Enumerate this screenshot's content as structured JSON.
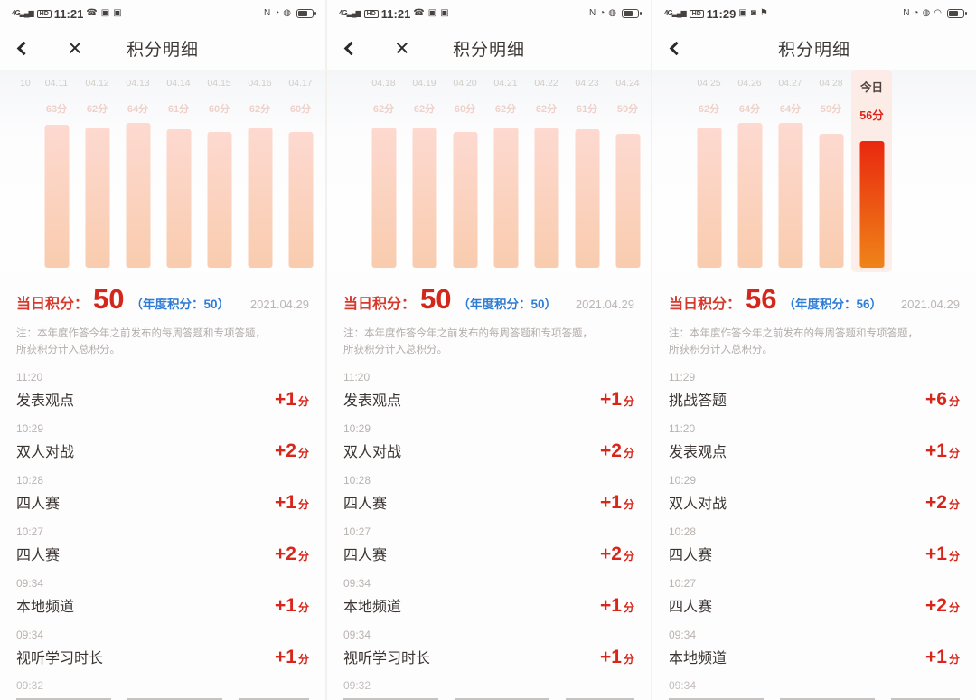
{
  "labels": {
    "points_unit": "分"
  },
  "colors": {
    "accent_red": "#d6281f",
    "annual_blue": "#2e7cd5",
    "bar_top": "#fdd9d0",
    "bar_bottom": "#f9ccae",
    "today_bar_top": "#e9280f",
    "today_bar_bottom": "#ef8418"
  },
  "chart_data": [
    {
      "type": "bar",
      "title": "积分明细 04.11-04.17",
      "categories": [
        "04.11",
        "04.12",
        "04.13",
        "04.14",
        "04.15",
        "04.16",
        "04.17"
      ],
      "values": [
        63,
        62,
        64,
        61,
        60,
        62,
        60
      ],
      "ylabel": "分"
    },
    {
      "type": "bar",
      "title": "积分明细 04.18-04.24",
      "categories": [
        "04.18",
        "04.19",
        "04.20",
        "04.21",
        "04.22",
        "04.23",
        "04.24"
      ],
      "values": [
        62,
        62,
        60,
        62,
        62,
        61,
        59
      ],
      "ylabel": "分"
    },
    {
      "type": "bar",
      "title": "积分明细 04.25-今日",
      "categories": [
        "04.25",
        "04.26",
        "04.27",
        "04.28",
        "今日"
      ],
      "values": [
        62,
        64,
        64,
        59,
        56
      ],
      "ylabel": "分"
    }
  ],
  "panels": [
    {
      "status_bar": {
        "time": "11:21",
        "icons_before_time": [
          {
            "name": "signal-4g-icon",
            "glyph": "4G▂▄▆"
          },
          {
            "name": "hd-icon",
            "glyph": "HD"
          }
        ],
        "icons_after_time": [
          {
            "name": "phone-icon",
            "glyph": "☎"
          },
          {
            "name": "app-badge-icon",
            "glyph": "▣"
          },
          {
            "name": "app-badge-icon",
            "glyph": "▣"
          }
        ],
        "right_icons": [
          {
            "name": "nfc-icon",
            "glyph": "N"
          },
          {
            "name": "alarm-icon",
            "glyph": "◔"
          },
          {
            "name": "data-saver-icon",
            "glyph": "◍"
          },
          {
            "name": "battery-icon",
            "glyph": ""
          }
        ]
      },
      "nav": {
        "title": "积分明细",
        "show_close": true,
        "close_glyph": "×"
      },
      "chart": {
        "partial_left_label": "10",
        "bars": [
          {
            "date": "04.11",
            "value_label": "63分",
            "value": 63
          },
          {
            "date": "04.12",
            "value_label": "62分",
            "value": 62
          },
          {
            "date": "04.13",
            "value_label": "64分",
            "value": 64
          },
          {
            "date": "04.14",
            "value_label": "61分",
            "value": 61
          },
          {
            "date": "04.15",
            "value_label": "60分",
            "value": 60
          },
          {
            "date": "04.16",
            "value_label": "62分",
            "value": 62
          },
          {
            "date": "04.17",
            "value_label": "60分",
            "value": 60
          }
        ]
      },
      "summary": {
        "label": "当日积分：",
        "value": "50",
        "annual": "（年度积分：50）",
        "date": "2021.04.29"
      },
      "note_line1": "注：本年度作答今年之前发布的每周答题和专项答题，",
      "note_line2": "所获积分计入总积分。",
      "entries": [
        {
          "time": "11:20",
          "name": "发表观点",
          "points": "+1"
        },
        {
          "time": "10:29",
          "name": "双人对战",
          "points": "+2"
        },
        {
          "time": "10:28",
          "name": "四人赛",
          "points": "+1"
        },
        {
          "time": "10:27",
          "name": "四人赛",
          "points": "+2"
        },
        {
          "time": "09:34",
          "name": "本地频道",
          "points": "+1"
        },
        {
          "time": "09:34",
          "name": "视听学习时长",
          "points": "+1"
        }
      ],
      "tail_time": "09:32"
    },
    {
      "status_bar": {
        "time": "11:21",
        "icons_before_time": [
          {
            "name": "signal-4g-icon",
            "glyph": "4G▂▄▆"
          },
          {
            "name": "hd-icon",
            "glyph": "HD"
          }
        ],
        "icons_after_time": [
          {
            "name": "phone-icon",
            "glyph": "☎"
          },
          {
            "name": "app-badge-icon",
            "glyph": "▣"
          },
          {
            "name": "app-badge-icon",
            "glyph": "▣"
          }
        ],
        "right_icons": [
          {
            "name": "nfc-icon",
            "glyph": "N"
          },
          {
            "name": "alarm-icon",
            "glyph": "◔"
          },
          {
            "name": "data-saver-icon",
            "glyph": "◍"
          },
          {
            "name": "battery-icon",
            "glyph": ""
          }
        ]
      },
      "nav": {
        "title": "积分明细",
        "show_close": true,
        "close_glyph": "×"
      },
      "chart": {
        "partial_left_label": "",
        "bars": [
          {
            "date": "04.18",
            "value_label": "62分",
            "value": 62
          },
          {
            "date": "04.19",
            "value_label": "62分",
            "value": 62
          },
          {
            "date": "04.20",
            "value_label": "60分",
            "value": 60
          },
          {
            "date": "04.21",
            "value_label": "62分",
            "value": 62
          },
          {
            "date": "04.22",
            "value_label": "62分",
            "value": 62
          },
          {
            "date": "04.23",
            "value_label": "61分",
            "value": 61
          },
          {
            "date": "04.24",
            "value_label": "59分",
            "value": 59
          }
        ]
      },
      "summary": {
        "label": "当日积分：",
        "value": "50",
        "annual": "（年度积分：50）",
        "date": "2021.04.29"
      },
      "note_line1": "注：本年度作答今年之前发布的每周答题和专项答题，",
      "note_line2": "所获积分计入总积分。",
      "entries": [
        {
          "time": "11:20",
          "name": "发表观点",
          "points": "+1"
        },
        {
          "time": "10:29",
          "name": "双人对战",
          "points": "+2"
        },
        {
          "time": "10:28",
          "name": "四人赛",
          "points": "+1"
        },
        {
          "time": "10:27",
          "name": "四人赛",
          "points": "+2"
        },
        {
          "time": "09:34",
          "name": "本地频道",
          "points": "+1"
        },
        {
          "time": "09:34",
          "name": "视听学习时长",
          "points": "+1"
        }
      ],
      "tail_time": "09:32"
    },
    {
      "status_bar": {
        "time": "11:29",
        "icons_before_time": [
          {
            "name": "signal-4g-icon",
            "glyph": "4G▂▄▆"
          },
          {
            "name": "hd-icon",
            "glyph": "HD"
          }
        ],
        "icons_after_time": [
          {
            "name": "app-badge-icon",
            "glyph": "▣"
          },
          {
            "name": "camera-icon",
            "glyph": "◙"
          },
          {
            "name": "location-icon",
            "glyph": "⚑"
          }
        ],
        "right_icons": [
          {
            "name": "nfc-icon",
            "glyph": "N"
          },
          {
            "name": "alarm-icon",
            "glyph": "◔"
          },
          {
            "name": "data-saver-icon",
            "glyph": "◍"
          },
          {
            "name": "wifi-icon",
            "glyph": "◠"
          },
          {
            "name": "battery-icon",
            "glyph": ""
          }
        ]
      },
      "nav": {
        "title": "积分明细",
        "show_close": false,
        "close_glyph": "×"
      },
      "chart": {
        "partial_left_label": "",
        "bars": [
          {
            "date": "04.25",
            "value_label": "62分",
            "value": 62
          },
          {
            "date": "04.26",
            "value_label": "64分",
            "value": 64
          },
          {
            "date": "04.27",
            "value_label": "64分",
            "value": 64
          },
          {
            "date": "04.28",
            "value_label": "59分",
            "value": 59
          },
          {
            "date": "今日",
            "value_label": "56分",
            "value": 56,
            "today": true
          }
        ]
      },
      "summary": {
        "label": "当日积分：",
        "value": "56",
        "annual": "（年度积分：56）",
        "date": "2021.04.29"
      },
      "note_line1": "注：本年度作答今年之前发布的每周答题和专项答题，",
      "note_line2": "所获积分计入总积分。",
      "entries": [
        {
          "time": "11:29",
          "name": "挑战答题",
          "points": "+6"
        },
        {
          "time": "11:20",
          "name": "发表观点",
          "points": "+1"
        },
        {
          "time": "10:29",
          "name": "双人对战",
          "points": "+2"
        },
        {
          "time": "10:28",
          "name": "四人赛",
          "points": "+1"
        },
        {
          "time": "10:27",
          "name": "四人赛",
          "points": "+2"
        },
        {
          "time": "09:34",
          "name": "本地频道",
          "points": "+1"
        }
      ],
      "tail_time": "09:34"
    }
  ]
}
